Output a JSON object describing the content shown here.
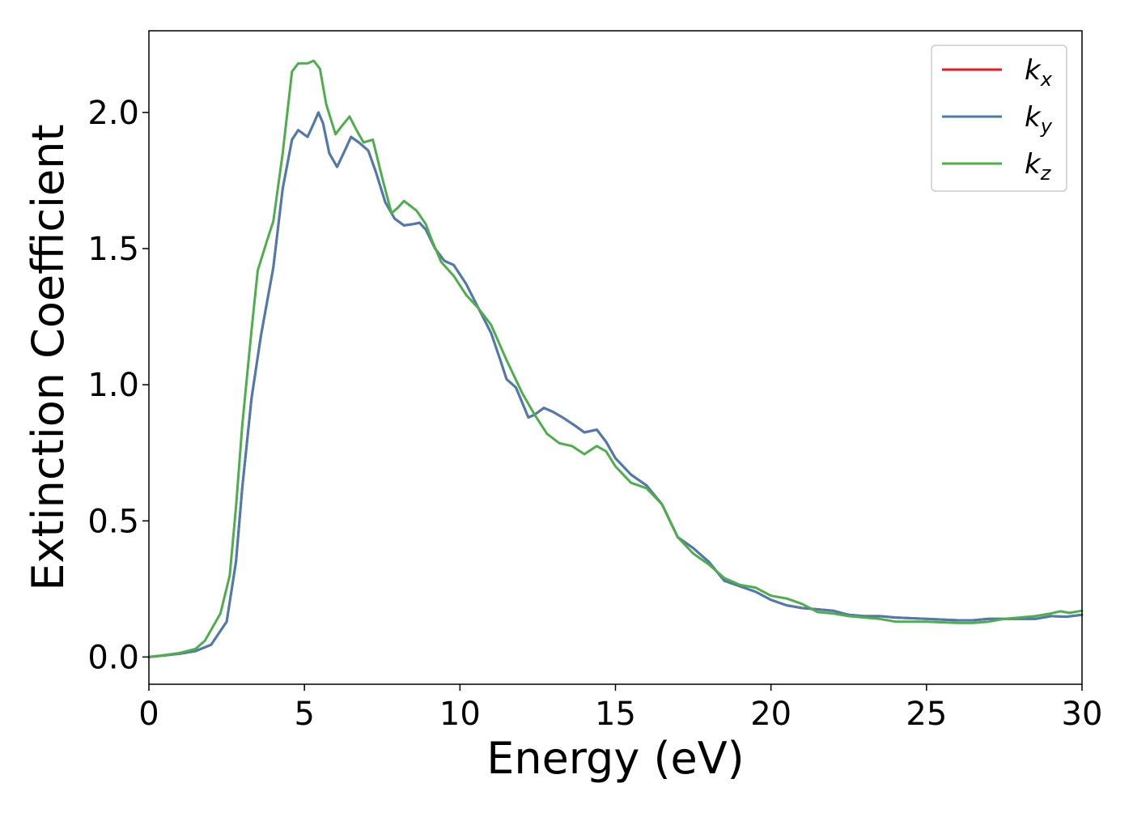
{
  "chart_data": {
    "type": "line",
    "xlabel": "Energy (eV)",
    "ylabel": "Extinction Coefficient",
    "xlim": [
      0,
      30
    ],
    "ylim": [
      -0.1,
      2.3
    ],
    "xticks": [
      "0",
      "5",
      "10",
      "15",
      "20",
      "25",
      "30"
    ],
    "yticks": [
      "0.0",
      "0.5",
      "1.0",
      "1.5",
      "2.0"
    ],
    "grid": false,
    "legend_position": "top-right",
    "series": [
      {
        "name": "k",
        "subscript": "x",
        "color": "#e41a1c",
        "points": [
          [
            0,
            0
          ],
          [
            0.5,
            0.006
          ],
          [
            1,
            0.012
          ],
          [
            1.5,
            0.022
          ],
          [
            2,
            0.045
          ],
          [
            2.5,
            0.13
          ],
          [
            2.8,
            0.35
          ],
          [
            3,
            0.62
          ],
          [
            3.3,
            0.95
          ],
          [
            3.6,
            1.18
          ],
          [
            4,
            1.43
          ],
          [
            4.3,
            1.72
          ],
          [
            4.6,
            1.9
          ],
          [
            4.8,
            1.935
          ],
          [
            5.1,
            1.91
          ],
          [
            5.3,
            1.96
          ],
          [
            5.45,
            2.0
          ],
          [
            5.6,
            1.96
          ],
          [
            5.8,
            1.85
          ],
          [
            6.05,
            1.8
          ],
          [
            6.3,
            1.86
          ],
          [
            6.5,
            1.91
          ],
          [
            6.75,
            1.89
          ],
          [
            7.05,
            1.86
          ],
          [
            7.3,
            1.78
          ],
          [
            7.6,
            1.67
          ],
          [
            7.9,
            1.61
          ],
          [
            8.2,
            1.585
          ],
          [
            8.5,
            1.59
          ],
          [
            8.7,
            1.595
          ],
          [
            8.9,
            1.57
          ],
          [
            9.2,
            1.5
          ],
          [
            9.5,
            1.455
          ],
          [
            9.8,
            1.44
          ],
          [
            10.2,
            1.37
          ],
          [
            10.6,
            1.28
          ],
          [
            11.0,
            1.19
          ],
          [
            11.3,
            1.09
          ],
          [
            11.5,
            1.02
          ],
          [
            11.8,
            0.99
          ],
          [
            12.2,
            0.88
          ],
          [
            12.4,
            0.89
          ],
          [
            12.7,
            0.915
          ],
          [
            13.0,
            0.9
          ],
          [
            13.3,
            0.88
          ],
          [
            13.7,
            0.85
          ],
          [
            14.0,
            0.825
          ],
          [
            14.4,
            0.835
          ],
          [
            14.7,
            0.79
          ],
          [
            15.0,
            0.73
          ],
          [
            15.5,
            0.67
          ],
          [
            16.0,
            0.63
          ],
          [
            16.5,
            0.56
          ],
          [
            17.0,
            0.44
          ],
          [
            17.5,
            0.4
          ],
          [
            18.0,
            0.35
          ],
          [
            18.5,
            0.28
          ],
          [
            19.0,
            0.26
          ],
          [
            19.5,
            0.24
          ],
          [
            20.0,
            0.21
          ],
          [
            20.5,
            0.19
          ],
          [
            21.0,
            0.18
          ],
          [
            21.5,
            0.175
          ],
          [
            22.0,
            0.17
          ],
          [
            22.5,
            0.155
          ],
          [
            23.0,
            0.15
          ],
          [
            23.5,
            0.15
          ],
          [
            24.0,
            0.145
          ],
          [
            25.0,
            0.14
          ],
          [
            26.0,
            0.135
          ],
          [
            26.5,
            0.135
          ],
          [
            27.0,
            0.14
          ],
          [
            28.0,
            0.14
          ],
          [
            28.5,
            0.14
          ],
          [
            29.0,
            0.15
          ],
          [
            29.5,
            0.148
          ],
          [
            30.0,
            0.155
          ]
        ]
      },
      {
        "name": "k",
        "subscript": "y",
        "color": "#4a7cb2",
        "points": [
          [
            0,
            0
          ],
          [
            0.5,
            0.006
          ],
          [
            1,
            0.012
          ],
          [
            1.5,
            0.022
          ],
          [
            2,
            0.045
          ],
          [
            2.5,
            0.13
          ],
          [
            2.8,
            0.35
          ],
          [
            3,
            0.62
          ],
          [
            3.3,
            0.95
          ],
          [
            3.6,
            1.18
          ],
          [
            4,
            1.43
          ],
          [
            4.3,
            1.72
          ],
          [
            4.6,
            1.9
          ],
          [
            4.8,
            1.935
          ],
          [
            5.1,
            1.91
          ],
          [
            5.3,
            1.96
          ],
          [
            5.45,
            2.0
          ],
          [
            5.6,
            1.96
          ],
          [
            5.8,
            1.85
          ],
          [
            6.05,
            1.8
          ],
          [
            6.3,
            1.86
          ],
          [
            6.5,
            1.91
          ],
          [
            6.75,
            1.89
          ],
          [
            7.05,
            1.86
          ],
          [
            7.3,
            1.78
          ],
          [
            7.6,
            1.67
          ],
          [
            7.9,
            1.61
          ],
          [
            8.2,
            1.585
          ],
          [
            8.5,
            1.59
          ],
          [
            8.7,
            1.595
          ],
          [
            8.9,
            1.57
          ],
          [
            9.2,
            1.5
          ],
          [
            9.5,
            1.455
          ],
          [
            9.8,
            1.44
          ],
          [
            10.2,
            1.37
          ],
          [
            10.6,
            1.28
          ],
          [
            11.0,
            1.19
          ],
          [
            11.3,
            1.09
          ],
          [
            11.5,
            1.02
          ],
          [
            11.8,
            0.99
          ],
          [
            12.2,
            0.88
          ],
          [
            12.4,
            0.89
          ],
          [
            12.7,
            0.915
          ],
          [
            13.0,
            0.9
          ],
          [
            13.3,
            0.88
          ],
          [
            13.7,
            0.85
          ],
          [
            14.0,
            0.825
          ],
          [
            14.4,
            0.835
          ],
          [
            14.7,
            0.79
          ],
          [
            15.0,
            0.73
          ],
          [
            15.5,
            0.67
          ],
          [
            16.0,
            0.63
          ],
          [
            16.5,
            0.56
          ],
          [
            17.0,
            0.44
          ],
          [
            17.5,
            0.4
          ],
          [
            18.0,
            0.35
          ],
          [
            18.5,
            0.28
          ],
          [
            19.0,
            0.26
          ],
          [
            19.5,
            0.24
          ],
          [
            20.0,
            0.21
          ],
          [
            20.5,
            0.19
          ],
          [
            21.0,
            0.18
          ],
          [
            21.5,
            0.175
          ],
          [
            22.0,
            0.17
          ],
          [
            22.5,
            0.155
          ],
          [
            23.0,
            0.15
          ],
          [
            23.5,
            0.15
          ],
          [
            24.0,
            0.145
          ],
          [
            25.0,
            0.14
          ],
          [
            26.0,
            0.135
          ],
          [
            26.5,
            0.135
          ],
          [
            27.0,
            0.14
          ],
          [
            28.0,
            0.14
          ],
          [
            28.5,
            0.14
          ],
          [
            29.0,
            0.15
          ],
          [
            29.5,
            0.148
          ],
          [
            30.0,
            0.155
          ]
        ]
      },
      {
        "name": "k",
        "subscript": "z",
        "color": "#4daf4a",
        "points": [
          [
            0,
            0
          ],
          [
            0.5,
            0.007
          ],
          [
            1,
            0.015
          ],
          [
            1.5,
            0.03
          ],
          [
            1.8,
            0.06
          ],
          [
            2,
            0.1
          ],
          [
            2.3,
            0.16
          ],
          [
            2.6,
            0.3
          ],
          [
            2.8,
            0.55
          ],
          [
            3,
            0.85
          ],
          [
            3.3,
            1.2
          ],
          [
            3.5,
            1.42
          ],
          [
            3.8,
            1.53
          ],
          [
            4.0,
            1.6
          ],
          [
            4.3,
            1.85
          ],
          [
            4.6,
            2.15
          ],
          [
            4.8,
            2.18
          ],
          [
            5.1,
            2.18
          ],
          [
            5.3,
            2.19
          ],
          [
            5.5,
            2.16
          ],
          [
            5.7,
            2.03
          ],
          [
            6.0,
            1.92
          ],
          [
            6.2,
            1.95
          ],
          [
            6.45,
            1.985
          ],
          [
            6.7,
            1.93
          ],
          [
            6.9,
            1.89
          ],
          [
            7.2,
            1.9
          ],
          [
            7.5,
            1.76
          ],
          [
            7.8,
            1.63
          ],
          [
            8.0,
            1.65
          ],
          [
            8.2,
            1.675
          ],
          [
            8.6,
            1.64
          ],
          [
            8.9,
            1.59
          ],
          [
            9.1,
            1.53
          ],
          [
            9.4,
            1.45
          ],
          [
            9.8,
            1.4
          ],
          [
            10.2,
            1.33
          ],
          [
            10.6,
            1.28
          ],
          [
            11.0,
            1.22
          ],
          [
            11.5,
            1.09
          ],
          [
            12.0,
            0.97
          ],
          [
            12.4,
            0.89
          ],
          [
            12.8,
            0.82
          ],
          [
            13.2,
            0.785
          ],
          [
            13.6,
            0.775
          ],
          [
            14.0,
            0.745
          ],
          [
            14.4,
            0.775
          ],
          [
            14.7,
            0.755
          ],
          [
            15.0,
            0.7
          ],
          [
            15.5,
            0.64
          ],
          [
            16.0,
            0.62
          ],
          [
            16.5,
            0.56
          ],
          [
            17.0,
            0.44
          ],
          [
            17.5,
            0.38
          ],
          [
            18.0,
            0.34
          ],
          [
            18.5,
            0.29
          ],
          [
            19.0,
            0.265
          ],
          [
            19.5,
            0.255
          ],
          [
            20.0,
            0.225
          ],
          [
            20.5,
            0.215
          ],
          [
            21.0,
            0.195
          ],
          [
            21.5,
            0.165
          ],
          [
            22.0,
            0.16
          ],
          [
            22.5,
            0.15
          ],
          [
            23.0,
            0.145
          ],
          [
            23.5,
            0.14
          ],
          [
            24.0,
            0.13
          ],
          [
            25.0,
            0.13
          ],
          [
            26.0,
            0.125
          ],
          [
            26.5,
            0.125
          ],
          [
            27.0,
            0.13
          ],
          [
            27.5,
            0.14
          ],
          [
            28.0,
            0.145
          ],
          [
            28.5,
            0.15
          ],
          [
            29.0,
            0.16
          ],
          [
            29.3,
            0.168
          ],
          [
            29.6,
            0.162
          ],
          [
            30.0,
            0.17
          ]
        ]
      }
    ]
  }
}
